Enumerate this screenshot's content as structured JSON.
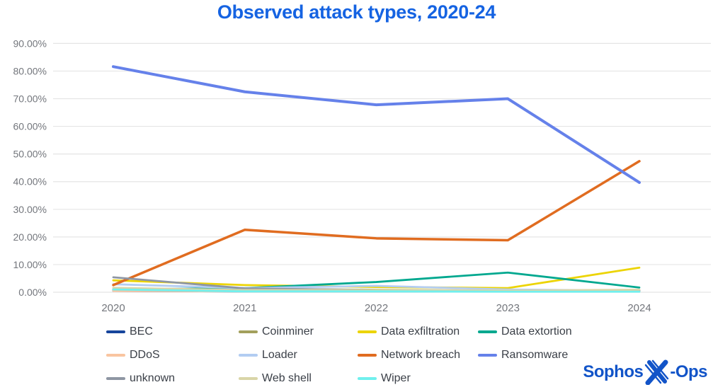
{
  "title": "Observed attack types, 2020-24",
  "chart_data": {
    "type": "line",
    "categories": [
      "2020",
      "2021",
      "2022",
      "2023",
      "2024"
    ],
    "series": [
      {
        "name": "BEC",
        "color": "#17459c",
        "values": [
          0.5,
          0.3,
          0.3,
          0.3,
          0.5
        ]
      },
      {
        "name": "Coinminer",
        "color": "#a3a05c",
        "values": [
          1.0,
          1.2,
          0.9,
          0.6,
          0.6
        ]
      },
      {
        "name": "Data exfiltration",
        "color": "#ecd405",
        "values": [
          4.3,
          2.6,
          1.9,
          1.5,
          8.9
        ]
      },
      {
        "name": "Data extortion",
        "color": "#00a88f",
        "values": [
          1.0,
          1.5,
          3.7,
          7.1,
          1.7
        ]
      },
      {
        "name": "DDoS",
        "color": "#f9c5a0",
        "values": [
          0.5,
          0.3,
          0.3,
          0.3,
          0.3
        ]
      },
      {
        "name": "Loader",
        "color": "#b3cdf2",
        "values": [
          2.9,
          1.5,
          2.3,
          1.0,
          0.5
        ]
      },
      {
        "name": "Network breach",
        "color": "#e06c20",
        "values": [
          2.6,
          22.6,
          19.5,
          18.8,
          47.4
        ]
      },
      {
        "name": "Ransomware",
        "color": "#6581ea",
        "values": [
          81.6,
          72.5,
          67.8,
          70.0,
          39.7
        ]
      },
      {
        "name": "unknown",
        "color": "#8e96a3",
        "values": [
          5.4,
          1.4,
          0.8,
          0.5,
          0.5
        ]
      },
      {
        "name": "Web shell",
        "color": "#d9d5a8",
        "values": [
          1.6,
          0.8,
          0.8,
          0.6,
          0.9
        ]
      },
      {
        "name": "Wiper",
        "color": "#70f0ee",
        "values": [
          1.0,
          0.3,
          0.3,
          0.2,
          0.2
        ]
      }
    ],
    "title": "Observed attack types, 2020-24",
    "xlabel": "",
    "ylabel": "",
    "ylim": [
      0,
      90
    ],
    "ytick_step": 10,
    "ytick_labels": [
      "0.00%",
      "10.00%",
      "20.00%",
      "30.00%",
      "40.00%",
      "50.00%",
      "60.00%",
      "70.00%",
      "80.00%",
      "90.00%"
    ],
    "grid": "horizontal",
    "legend_position": "bottom"
  },
  "colors": {
    "title": "#1563e2",
    "axis_text": "#73767c",
    "gridline": "#e5e5e5",
    "legend_text": "#3a3f47",
    "logo": "#1254c8"
  },
  "logo": {
    "text_left": "Sophos",
    "mark": "X",
    "text_right": "-Ops"
  }
}
